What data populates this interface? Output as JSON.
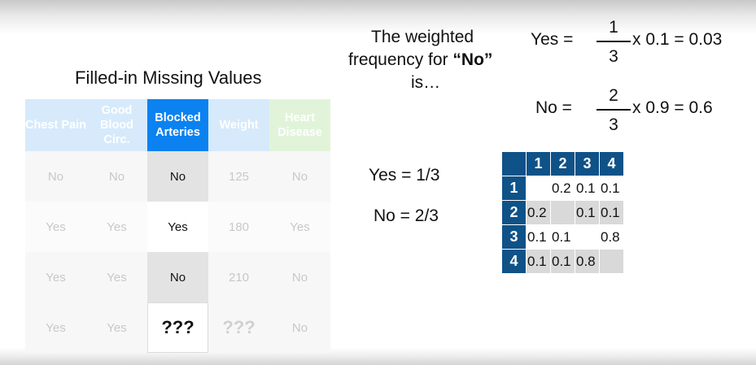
{
  "table": {
    "title": "Filled-in Missing Values",
    "headers": [
      "Chest Pain",
      "Good Blood Circ.",
      "Blocked Arteries",
      "Weight",
      "Heart Disease"
    ],
    "rows": [
      [
        "No",
        "No",
        "No",
        "125",
        "No"
      ],
      [
        "Yes",
        "Yes",
        "Yes",
        "180",
        "Yes"
      ],
      [
        "Yes",
        "Yes",
        "No",
        "210",
        "No"
      ],
      [
        "Yes",
        "Yes",
        "???",
        "???",
        "No"
      ]
    ]
  },
  "question": {
    "line1": "The weighted",
    "line2_prefix": "frequency for ",
    "line2_bold": "“No”",
    "line3": "is…"
  },
  "equations": {
    "yes": {
      "label": "Yes =",
      "numerator": "1",
      "denominator": "3",
      "rest": "x 0.1 = 0.03"
    },
    "no": {
      "label": "No =",
      "numerator": "2",
      "denominator": "3",
      "rest": "x 0.9 = 0.6"
    }
  },
  "frequencies": {
    "yes": "Yes = 1/3",
    "no": "No = 2/3"
  },
  "matrix": {
    "col_headers": [
      "1",
      "2",
      "3",
      "4"
    ],
    "row_headers": [
      "1",
      "2",
      "3",
      "4"
    ],
    "cells": [
      [
        "",
        "0.2",
        "0.1",
        "0.1"
      ],
      [
        "0.2",
        "",
        "0.1",
        "0.1"
      ],
      [
        "0.1",
        "0.1",
        "",
        "0.8"
      ],
      [
        "0.1",
        "0.1",
        "0.8",
        ""
      ]
    ]
  }
}
